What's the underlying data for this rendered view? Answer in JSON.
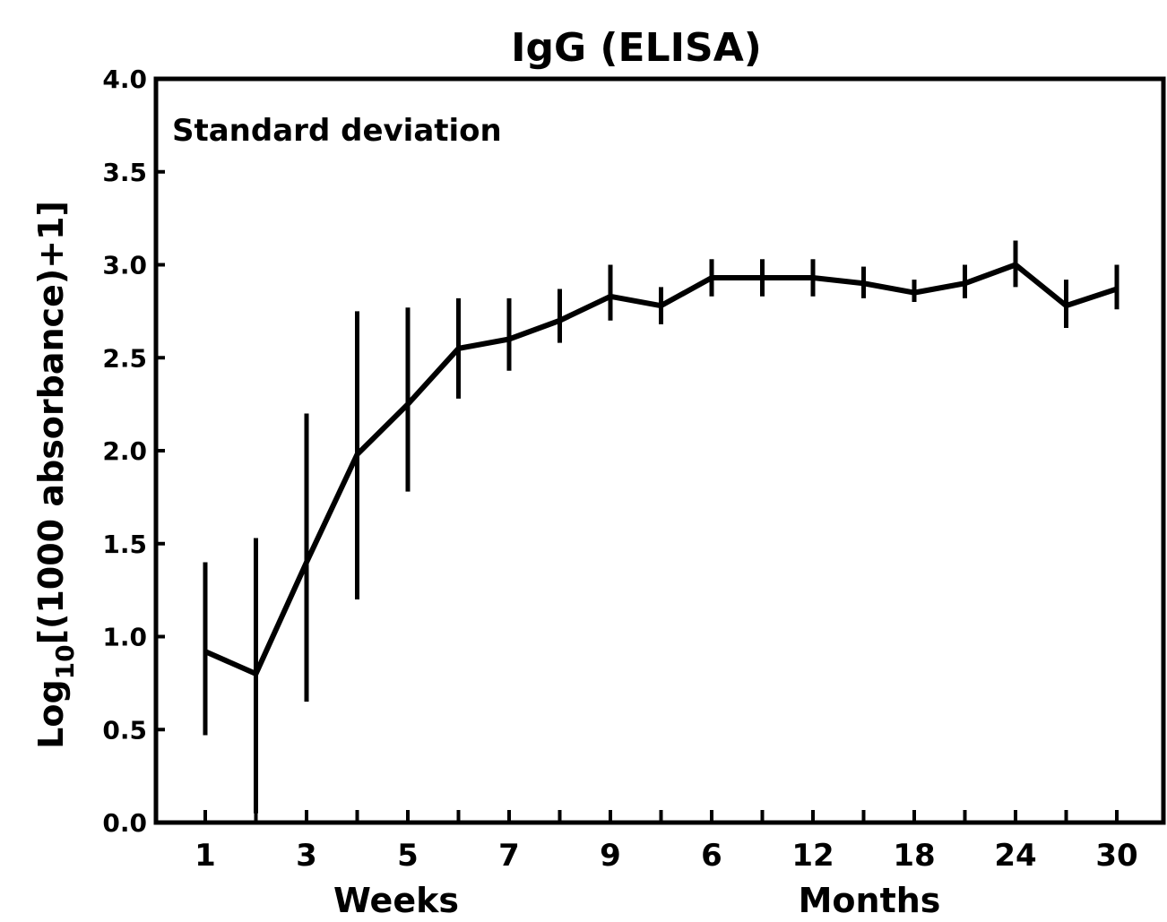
{
  "chart_data": {
    "type": "line",
    "title": "IgG (ELISA)",
    "annotation": "Standard deviation",
    "ylabel": "Log10[(1000 absorbance)+1]",
    "ylabel_main": "Log",
    "ylabel_sub": "10",
    "ylabel_rest": "[(1000 absorbance)+1]",
    "xlabels": {
      "weeks": "Weeks",
      "months": "Months"
    },
    "ylim": [
      0.0,
      4.0
    ],
    "yticks": [
      "0.0",
      "0.5",
      "1.0",
      "1.5",
      "2.0",
      "2.5",
      "3.0",
      "3.5",
      "4.0"
    ],
    "xtick_labels": [
      "1",
      "3",
      "5",
      "7",
      "9",
      "6",
      "12",
      "18",
      "24",
      "30"
    ],
    "grid": false,
    "series": [
      {
        "values": [
          0.92,
          0.8,
          1.4,
          1.98,
          2.25,
          2.55,
          2.6,
          2.7,
          2.83,
          2.78,
          2.93,
          2.93,
          2.93,
          2.9,
          2.85,
          2.9,
          3.0,
          2.78,
          2.87
        ],
        "error_low": [
          0.47,
          0.05,
          0.65,
          1.2,
          1.78,
          2.28,
          2.43,
          2.58,
          2.7,
          2.68,
          2.83,
          2.83,
          2.83,
          2.82,
          2.8,
          2.82,
          2.88,
          2.66,
          2.76
        ],
        "error_high": [
          1.4,
          1.53,
          2.2,
          2.75,
          2.77,
          2.82,
          2.82,
          2.87,
          3.0,
          2.88,
          3.03,
          3.03,
          3.03,
          2.99,
          2.92,
          3.0,
          3.13,
          2.92,
          3.0
        ]
      }
    ]
  }
}
